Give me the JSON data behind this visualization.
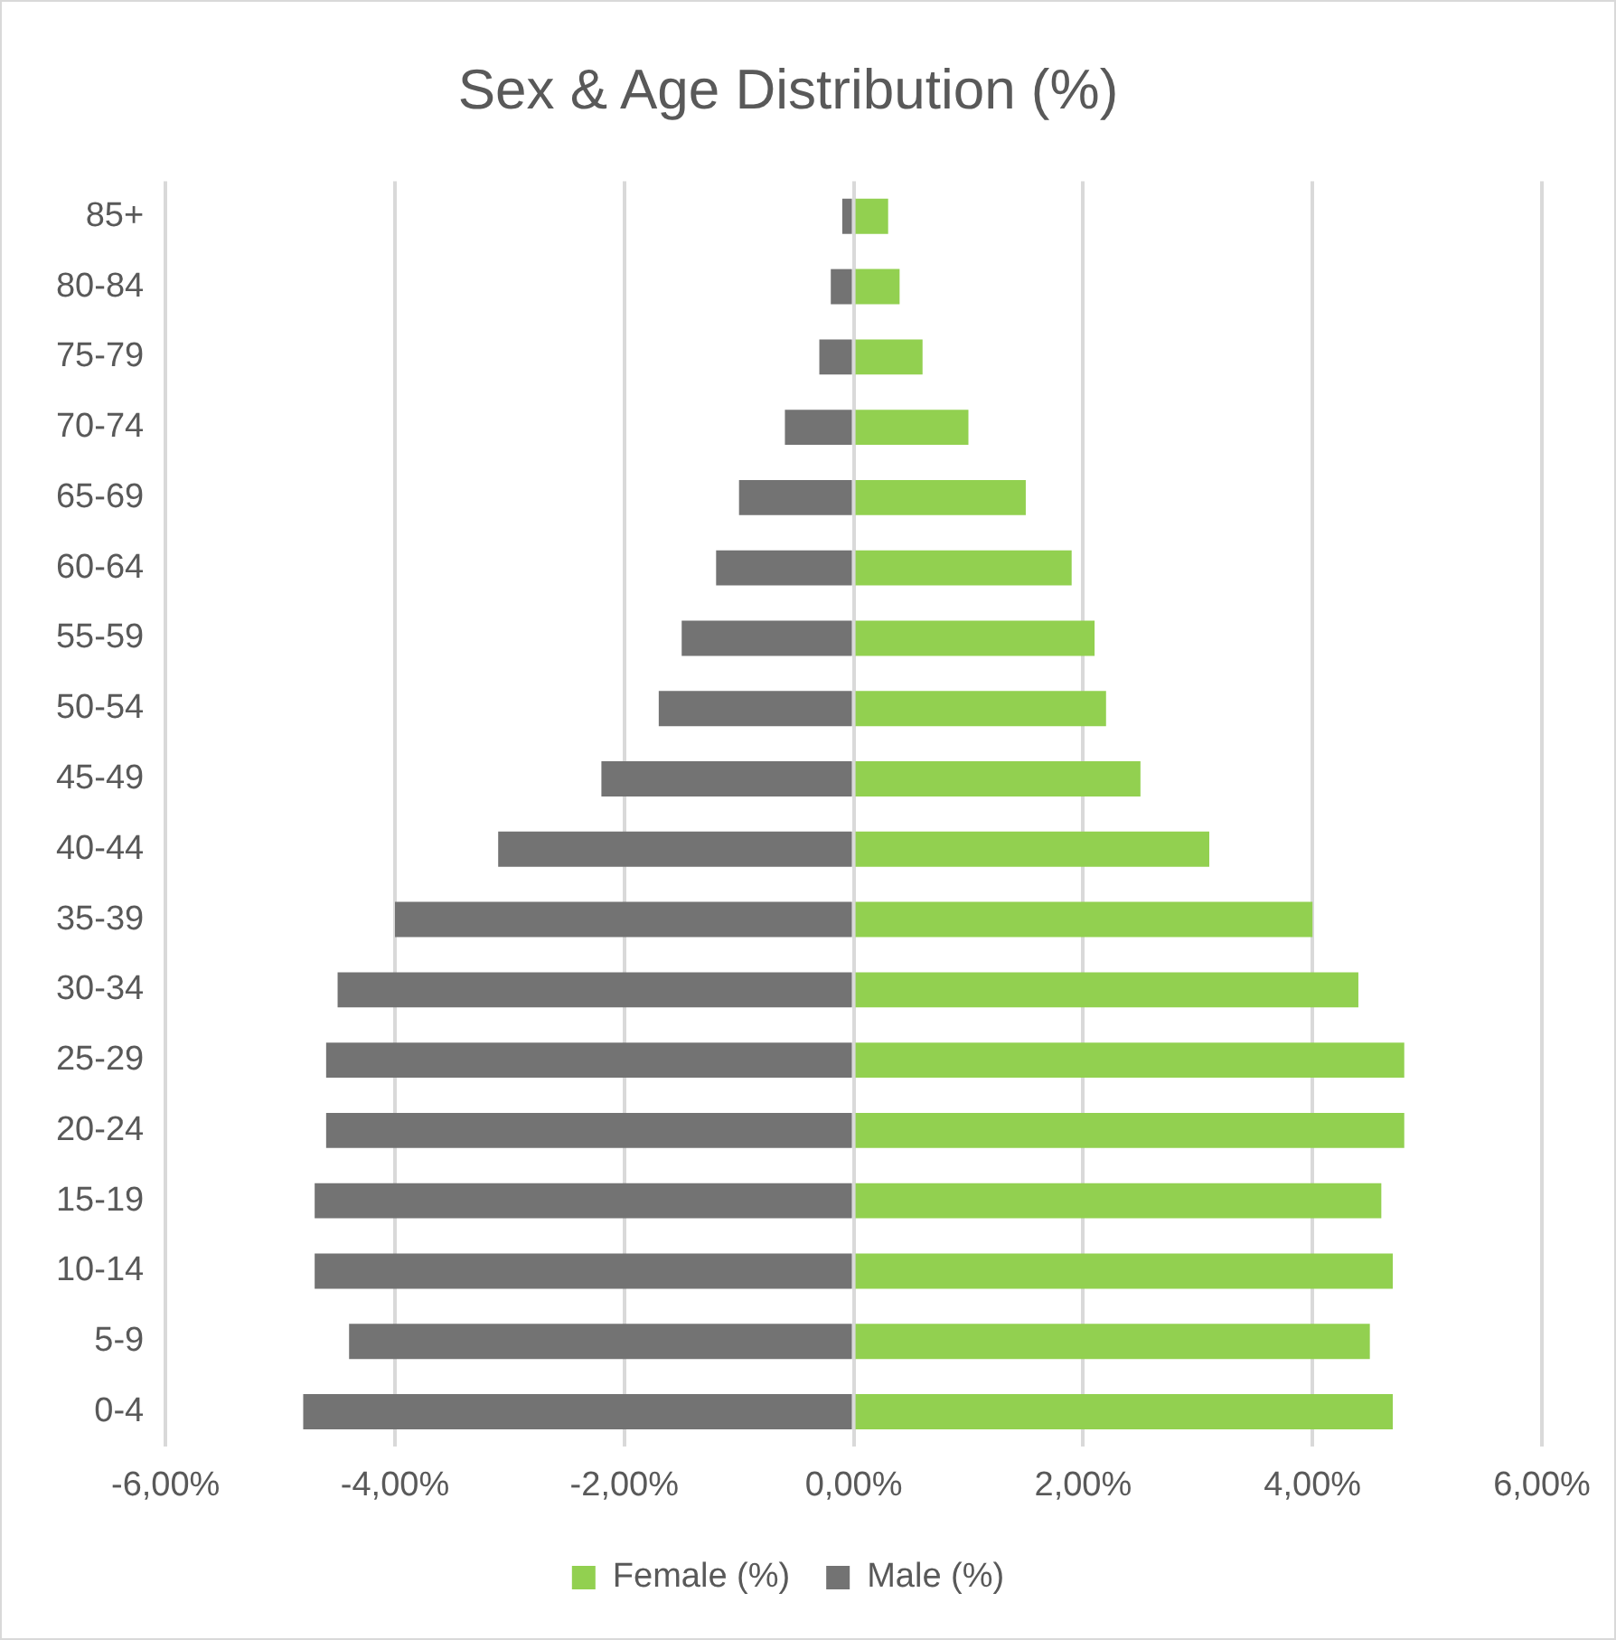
{
  "chart_data": {
    "type": "bar",
    "title": "Sex & Age Distribution (%)",
    "orientation": "horizontal",
    "stacked": true,
    "categories": [
      "85+",
      "80-84",
      "75-79",
      "70-74",
      "65-69",
      "60-64",
      "55-59",
      "50-54",
      "45-49",
      "40-44",
      "35-39",
      "30-34",
      "25-29",
      "20-24",
      "15-19",
      "10-14",
      "5-9",
      "0-4"
    ],
    "series": [
      {
        "name": "Female (%)",
        "color": "#92d050",
        "values": [
          0.3,
          0.4,
          0.6,
          1.0,
          1.5,
          1.9,
          2.1,
          2.2,
          2.5,
          3.1,
          4.0,
          4.4,
          4.8,
          4.8,
          4.6,
          4.7,
          4.5,
          4.7
        ]
      },
      {
        "name": "Male (%)",
        "color": "#737373",
        "values": [
          -0.1,
          -0.2,
          -0.3,
          -0.6,
          -1.0,
          -1.2,
          -1.5,
          -1.7,
          -2.2,
          -3.1,
          -4.0,
          -4.5,
          -4.6,
          -4.6,
          -4.7,
          -4.7,
          -4.4,
          -4.8
        ]
      }
    ],
    "xlim": [
      -6,
      6
    ],
    "xticks": [
      {
        "value": -6,
        "label": "-6,00%"
      },
      {
        "value": -4,
        "label": "-4,00%"
      },
      {
        "value": -2,
        "label": "-2,00%"
      },
      {
        "value": 0,
        "label": "0,00%"
      },
      {
        "value": 2,
        "label": "2,00%"
      },
      {
        "value": 4,
        "label": "4,00%"
      },
      {
        "value": 6,
        "label": "6,00%"
      }
    ],
    "grid": "x",
    "legend": "bottom"
  }
}
